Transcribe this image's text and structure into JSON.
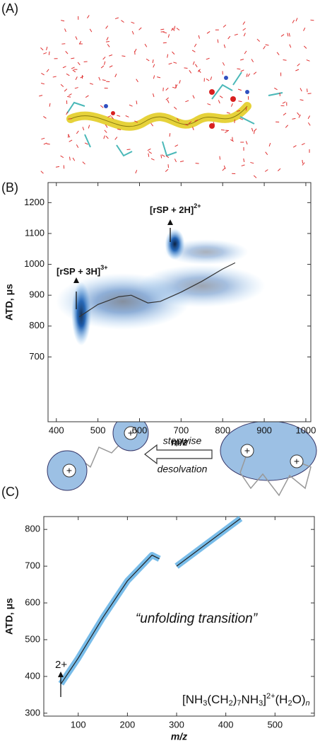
{
  "panel_labels": [
    "(A)",
    "(B)",
    "(C)"
  ],
  "cartoon": {
    "arrow_text": [
      "stepwise",
      "desolvation"
    ],
    "charge": "+"
  },
  "chart_data": [
    {
      "type": "line",
      "ylabel": "ATD, μs",
      "xlabel": "m/z",
      "xlim": [
        380,
        1012
      ],
      "ylim": [
        490,
        1265
      ],
      "xticks": [
        400,
        500,
        600,
        700,
        800,
        900,
        1000
      ],
      "yticks": [
        700,
        800,
        900,
        1000,
        1100,
        1200
      ],
      "annotations": [
        {
          "text": "[rSP + 3H]",
          "superscript": "3+"
        },
        {
          "text": "[rSP + 2H]",
          "superscript": "2+"
        }
      ],
      "color": "#333333",
      "x": [
        455,
        500,
        550,
        580,
        620,
        650,
        700,
        750,
        800,
        830
      ],
      "values": [
        830,
        870,
        895,
        900,
        875,
        880,
        910,
        945,
        985,
        1005
      ]
    },
    {
      "type": "line",
      "ylabel": "ATD, μs",
      "xlabel": "m/z",
      "xlim": [
        30,
        580
      ],
      "ylim": [
        292,
        835
      ],
      "xticks": [
        100,
        200,
        300,
        400,
        500
      ],
      "yticks": [
        300,
        400,
        500,
        600,
        700,
        800
      ],
      "annotations": [
        {
          "text": "2+"
        },
        {
          "text": "“unfolding transition”"
        }
      ],
      "formula": [
        "[NH",
        "3",
        "(CH",
        "2",
        ")",
        "7",
        "NH",
        "3",
        "]",
        "2+",
        "(H",
        "2",
        "O)",
        "n"
      ],
      "color": "#222222",
      "x": [
        65,
        100,
        150,
        200,
        250,
        265,
        280,
        300,
        350,
        400,
        430
      ],
      "values": [
        380,
        450,
        560,
        660,
        730,
        720,
        null,
        700,
        750,
        800,
        830
      ]
    }
  ]
}
